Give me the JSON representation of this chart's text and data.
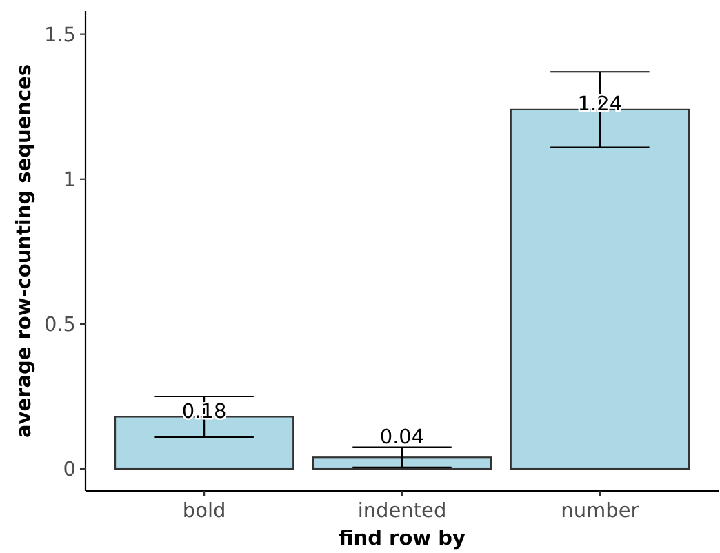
{
  "chart_data": {
    "type": "bar",
    "xlabel": "find row by",
    "ylabel": "average row-counting sequences",
    "categories": [
      "bold",
      "indented",
      "number"
    ],
    "values": [
      0.18,
      0.04,
      1.24
    ],
    "color": "#add8e6",
    "errors": [
      [
        0.11,
        0.25
      ],
      [
        0.005,
        0.075
      ],
      [
        1.11,
        1.37
      ]
    ],
    "data_labels": true,
    "ylim": [
      -0.076,
      1.58
    ],
    "yticks": [
      0,
      0.5,
      1,
      1.5
    ]
  }
}
